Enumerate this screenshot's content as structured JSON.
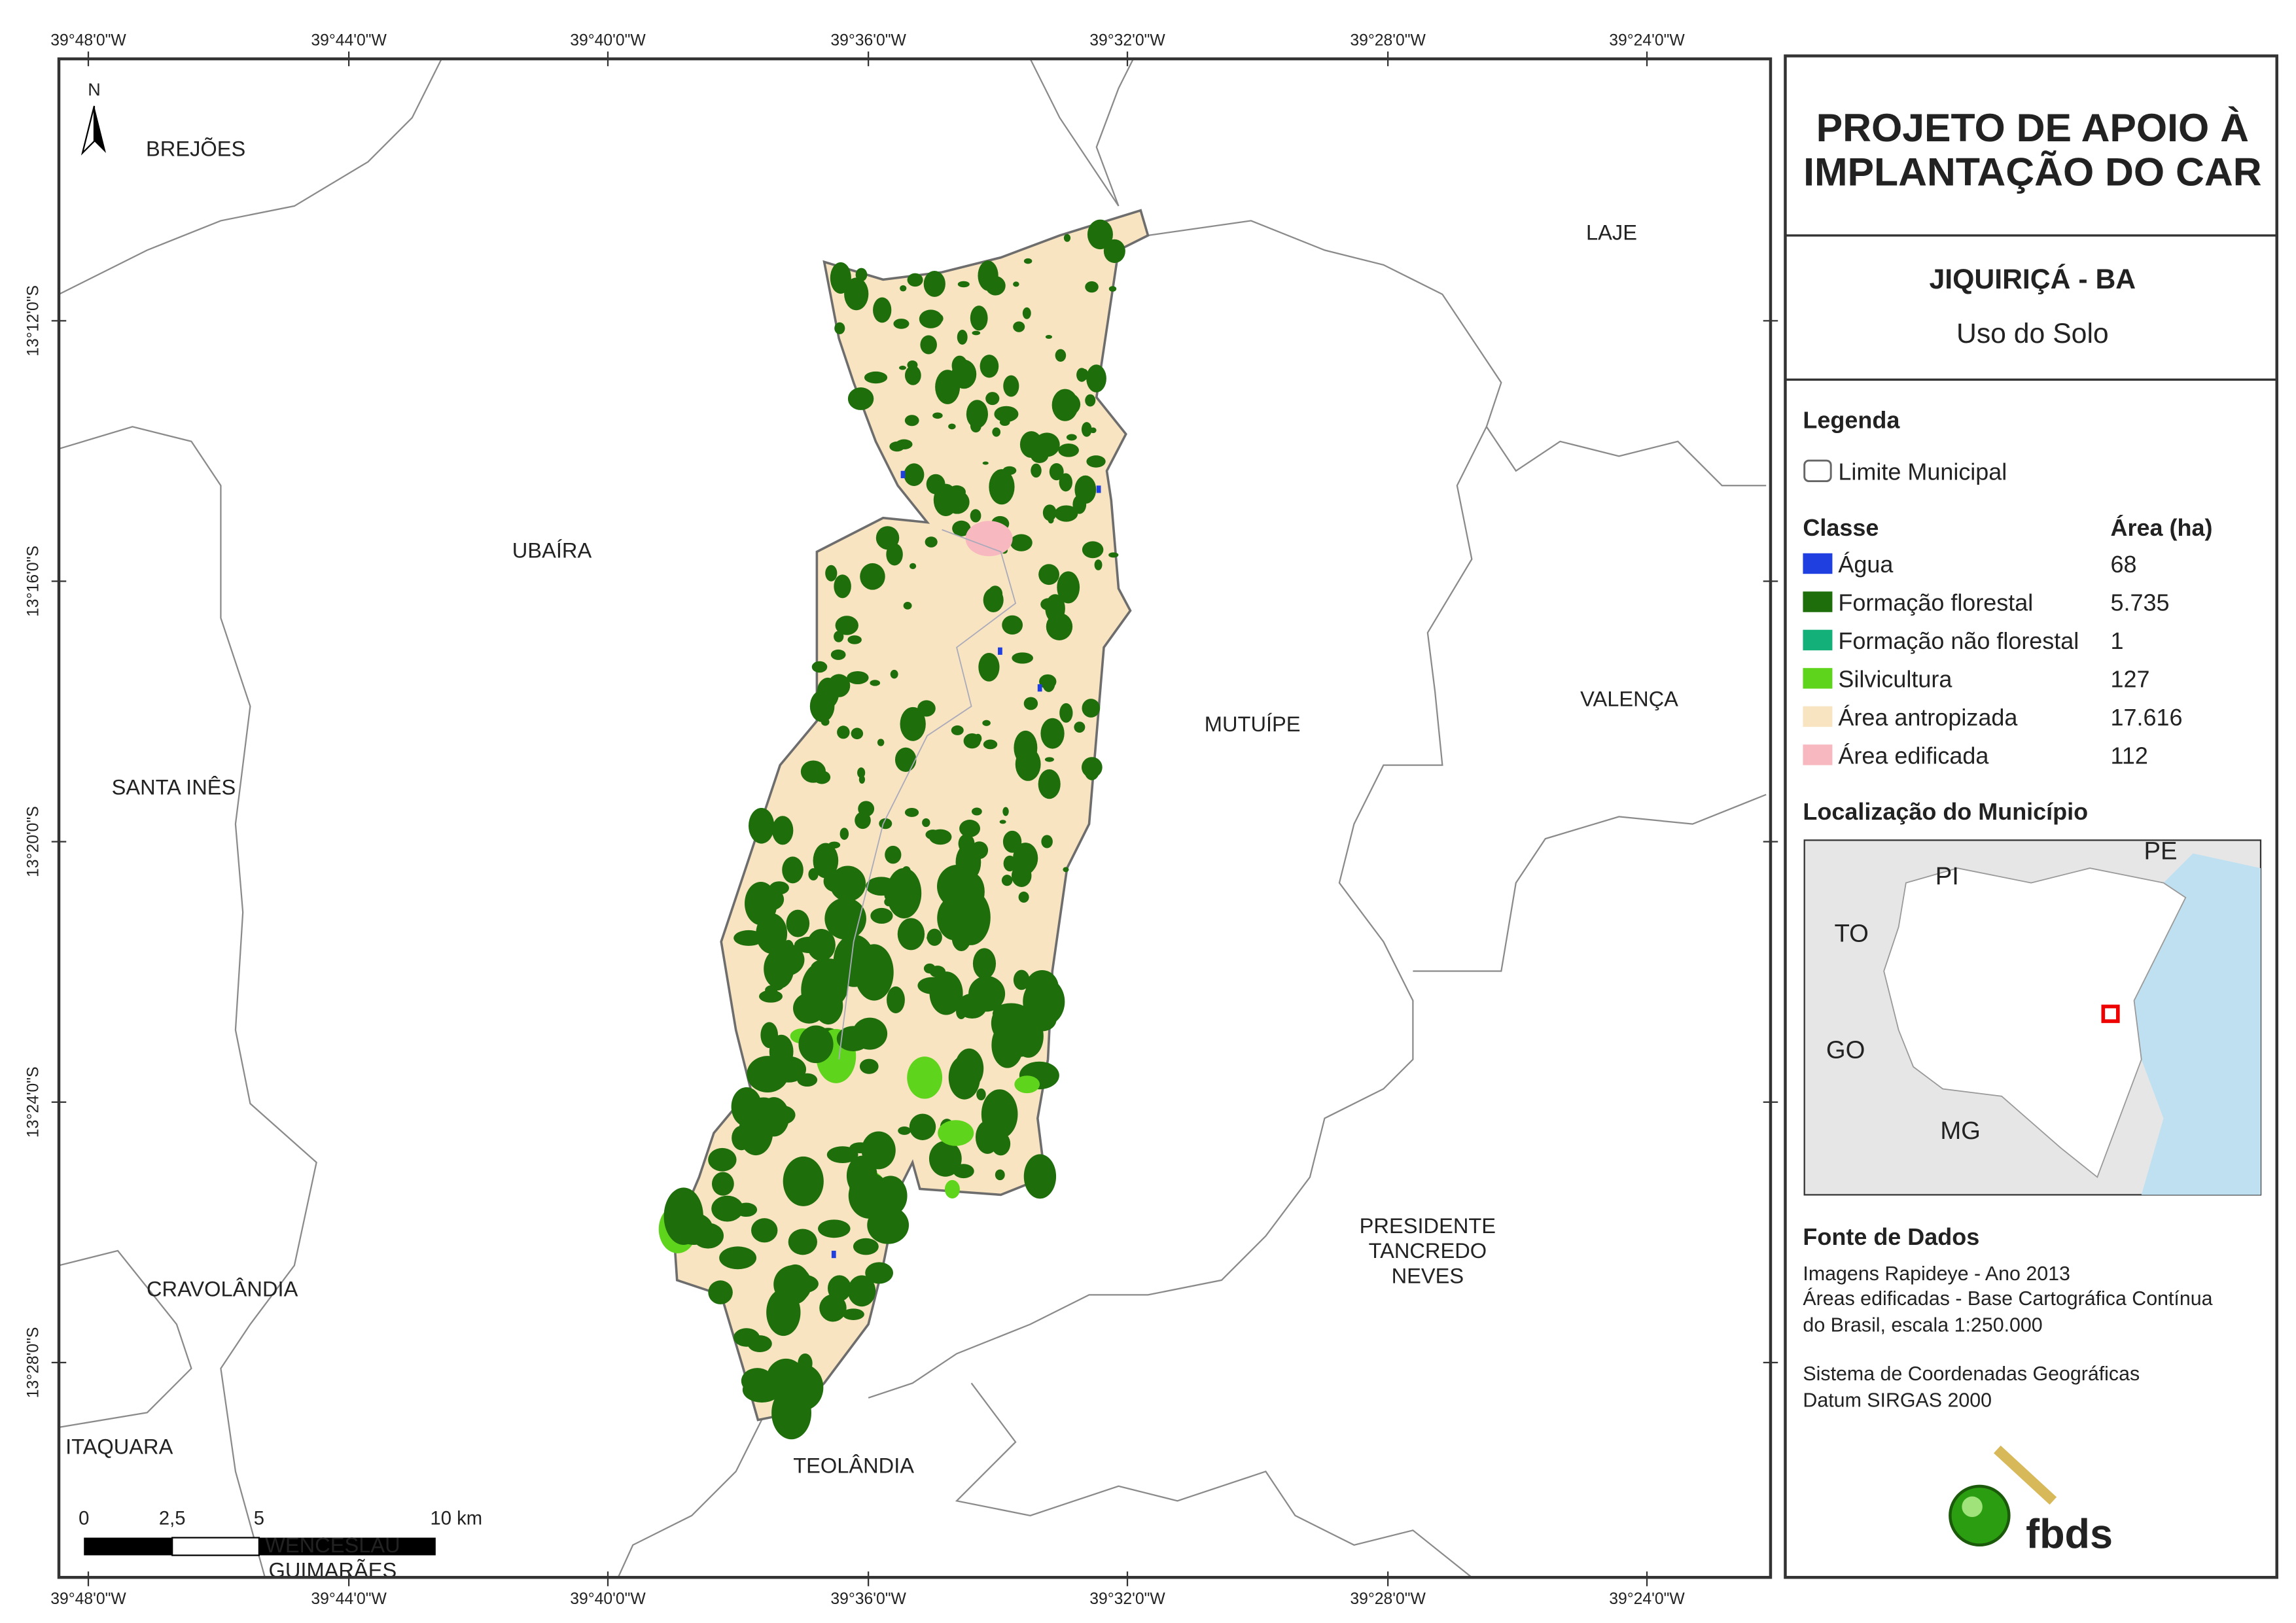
{
  "title": {
    "line1": "PROJETO DE APOIO À",
    "line2": "IMPLANTAÇÃO DO CAR"
  },
  "municipality": "JIQUIRIÇÁ - BA",
  "theme": "Uso do Solo",
  "legend": {
    "heading": "Legenda",
    "boundary": "Limite Municipal",
    "class_header": "Classe",
    "area_header": "Área (ha)",
    "items": [
      {
        "label": "Água",
        "area": "68",
        "color": "#1f3fe0"
      },
      {
        "label": "Formação florestal",
        "area": "5.735",
        "color": "#1e6e0c"
      },
      {
        "label": "Formação não florestal",
        "area": "1",
        "color": "#13b07a"
      },
      {
        "label": "Silvicultura",
        "area": "127",
        "color": "#5fd41c"
      },
      {
        "label": "Área antropizada",
        "area": "17.616",
        "color": "#f8e4c0"
      },
      {
        "label": "Área edificada",
        "area": "112",
        "color": "#f7b8c0"
      }
    ]
  },
  "location_heading": "Localização do Município",
  "inset": {
    "labels": [
      "PI",
      "PE",
      "TO",
      "GO",
      "MG"
    ]
  },
  "sources": {
    "heading": "Fonte de Dados",
    "lines": [
      "Imagens Rapideye - Ano 2013",
      "Áreas edificadas - Base Cartográfica Contínua",
      "do Brasil, escala 1:250.000",
      "Sistema de Coordenadas Geográficas",
      "Datum SIRGAS 2000"
    ]
  },
  "map": {
    "north": "N",
    "lon_labels": [
      "39°48'0\"W",
      "39°44'0\"W",
      "39°40'0\"W",
      "39°36'0\"W",
      "39°32'0\"W",
      "39°28'0\"W",
      "39°24'0\"W"
    ],
    "lat_labels": [
      "13°12'0\"S",
      "13°16'0\"S",
      "13°20'0\"S",
      "13°24'0\"S",
      "13°28'0\"S"
    ],
    "place_names": [
      {
        "lines": [
          "BREJÕES"
        ]
      },
      {
        "lines": [
          "LAJE"
        ]
      },
      {
        "lines": [
          "UBAÍRA"
        ]
      },
      {
        "lines": [
          "MUTUÍPE"
        ]
      },
      {
        "lines": [
          "VALENÇA"
        ]
      },
      {
        "lines": [
          "SANTA INÊS"
        ]
      },
      {
        "lines": [
          "CRAVOLÂNDIA"
        ]
      },
      {
        "lines": [
          "PRESIDENTE",
          "TANCREDO",
          "NEVES"
        ]
      },
      {
        "lines": [
          "ITAQUARA"
        ]
      },
      {
        "lines": [
          "TEOLÂNDIA"
        ]
      },
      {
        "lines": [
          "WENCESLAU",
          "GUIMARÃES"
        ]
      }
    ],
    "scale": {
      "labels": [
        "0",
        "2,5",
        "5",
        "10 km"
      ]
    }
  },
  "logo": "fbds"
}
